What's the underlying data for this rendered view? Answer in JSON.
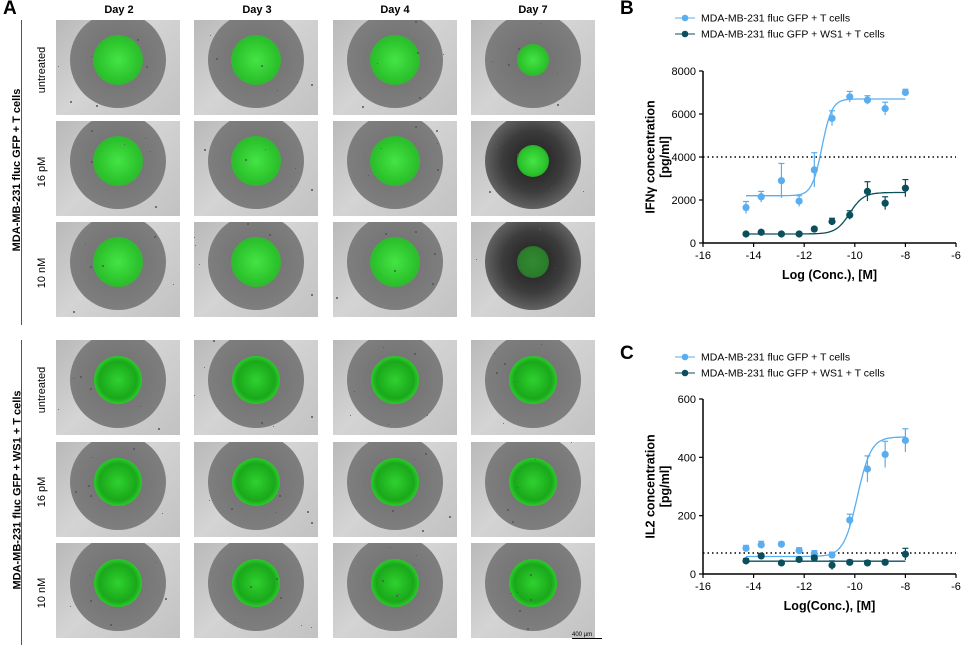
{
  "panel_labels": {
    "a": "A",
    "b": "B",
    "c": "C"
  },
  "days": [
    "Day 2",
    "Day 3",
    "Day 4",
    "Day 7"
  ],
  "groups": [
    {
      "label": "MDA-MB-231 fluc GFP + T cells",
      "conditions": [
        "untreated",
        "16 pM",
        "10 nM"
      ]
    },
    {
      "label": "MDA-MB-231 fluc GFP + WS1 + T cells",
      "conditions": [
        "untreated",
        "16 pM",
        "10 nM"
      ]
    }
  ],
  "scale_bar": "400 µm",
  "colors": {
    "light_series": "#5aaef0",
    "dark_series": "#0b4f5c",
    "gfp": "#22dd22",
    "axis": "#000000"
  },
  "chart_data": [
    {
      "type": "scatter",
      "panel": "B",
      "xlabel": "Log (Conc.), [M]",
      "ylabel": "IFNγ concentration [pg/ml]",
      "xlim": [
        -16,
        -6
      ],
      "ylim": [
        0,
        8000
      ],
      "xticks": [
        "-16",
        "-14",
        "-12",
        "-10",
        "-8",
        "-6"
      ],
      "yticks": [
        "0",
        "2000",
        "4000",
        "6000",
        "8000"
      ],
      "reference_line": 4000,
      "legend_position": "top",
      "series": [
        {
          "name": "MDA-MB-231 fluc GFP + T cells",
          "color": "#5aaef0",
          "points": [
            {
              "x": -14.3,
              "y": 1650,
              "err": 280
            },
            {
              "x": -13.7,
              "y": 2150,
              "err": 250
            },
            {
              "x": -12.9,
              "y": 2900,
              "err": 800
            },
            {
              "x": -12.2,
              "y": 1950,
              "err": 250
            },
            {
              "x": -11.6,
              "y": 3400,
              "err": 800
            },
            {
              "x": -10.9,
              "y": 5800,
              "err": 350
            },
            {
              "x": -10.2,
              "y": 6800,
              "err": 250
            },
            {
              "x": -9.5,
              "y": 6650,
              "err": 200
            },
            {
              "x": -8.8,
              "y": 6250,
              "err": 300
            },
            {
              "x": -8.0,
              "y": 7000,
              "err": 150
            }
          ],
          "curve": {
            "bottom": 2200,
            "top": 6700,
            "logEC50": -11.3,
            "hill": 2.2
          }
        },
        {
          "name": "MDA-MB-231 fluc GFP + WS1 + T cells",
          "color": "#0b4f5c",
          "points": [
            {
              "x": -14.3,
              "y": 420,
              "err": 60
            },
            {
              "x": -13.7,
              "y": 500,
              "err": 60
            },
            {
              "x": -12.9,
              "y": 420,
              "err": 60
            },
            {
              "x": -12.2,
              "y": 420,
              "err": 60
            },
            {
              "x": -11.6,
              "y": 650,
              "err": 80
            },
            {
              "x": -10.9,
              "y": 1000,
              "err": 150
            },
            {
              "x": -10.2,
              "y": 1300,
              "err": 200
            },
            {
              "x": -9.5,
              "y": 2400,
              "err": 450
            },
            {
              "x": -8.8,
              "y": 1850,
              "err": 300
            },
            {
              "x": -8.0,
              "y": 2550,
              "err": 400
            }
          ],
          "curve": {
            "bottom": 420,
            "top": 2350,
            "logEC50": -10.2,
            "hill": 1.6
          }
        }
      ]
    },
    {
      "type": "scatter",
      "panel": "C",
      "xlabel": "Log(Conc.), [M]",
      "ylabel": "IL2 concentration [pg/ml]",
      "xlim": [
        -16,
        -6
      ],
      "ylim": [
        0,
        600
      ],
      "xticks": [
        "-16",
        "-14",
        "-12",
        "-10",
        "-8",
        "-6"
      ],
      "yticks": [
        "0",
        "200",
        "400",
        "600"
      ],
      "reference_line": 72,
      "legend_position": "top",
      "series": [
        {
          "name": "MDA-MB-231 fluc GFP + T cells",
          "color": "#5aaef0",
          "points": [
            {
              "x": -14.3,
              "y": 88,
              "err": 10
            },
            {
              "x": -13.7,
              "y": 100,
              "err": 12
            },
            {
              "x": -12.9,
              "y": 102,
              "err": 8
            },
            {
              "x": -12.2,
              "y": 80,
              "err": 10
            },
            {
              "x": -11.6,
              "y": 70,
              "err": 10
            },
            {
              "x": -10.9,
              "y": 65,
              "err": 10
            },
            {
              "x": -10.2,
              "y": 185,
              "err": 20
            },
            {
              "x": -9.5,
              "y": 360,
              "err": 45
            },
            {
              "x": -8.8,
              "y": 410,
              "err": 45
            },
            {
              "x": -8.0,
              "y": 458,
              "err": 40
            }
          ],
          "curve": {
            "bottom": 60,
            "top": 470,
            "logEC50": -9.9,
            "hill": 1.6
          }
        },
        {
          "name": "MDA-MB-231 fluc GFP + WS1 + T cells",
          "color": "#0b4f5c",
          "points": [
            {
              "x": -14.3,
              "y": 45,
              "err": 8
            },
            {
              "x": -13.7,
              "y": 62,
              "err": 8
            },
            {
              "x": -12.9,
              "y": 38,
              "err": 6
            },
            {
              "x": -12.2,
              "y": 50,
              "err": 6
            },
            {
              "x": -11.6,
              "y": 55,
              "err": 8
            },
            {
              "x": -10.9,
              "y": 30,
              "err": 15
            },
            {
              "x": -10.2,
              "y": 40,
              "err": 8
            },
            {
              "x": -9.5,
              "y": 38,
              "err": 8
            },
            {
              "x": -8.8,
              "y": 40,
              "err": 8
            },
            {
              "x": -8.0,
              "y": 68,
              "err": 20
            }
          ],
          "curve": {
            "bottom": 44,
            "top": 44,
            "logEC50": -10.0,
            "hill": 1.0
          }
        }
      ]
    }
  ]
}
